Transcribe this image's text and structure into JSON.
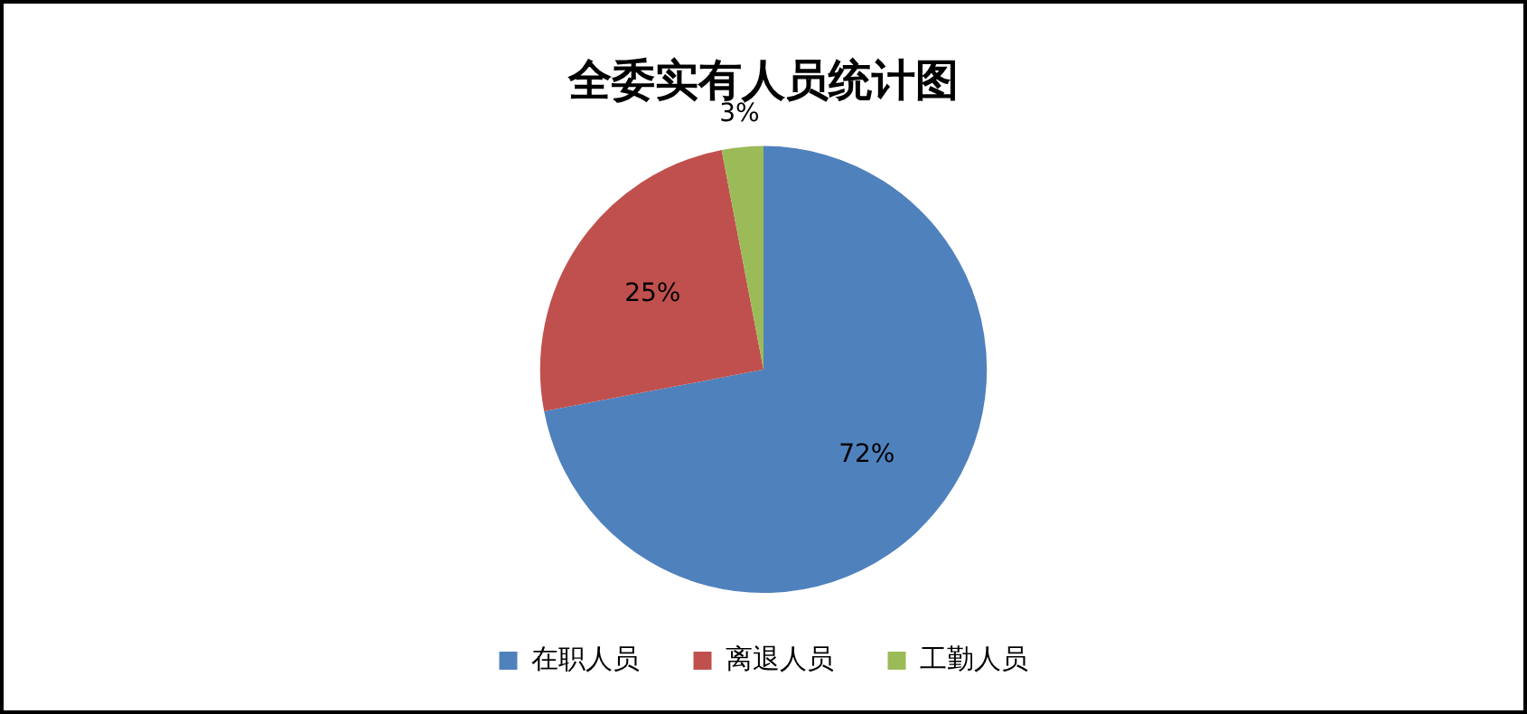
{
  "chart_data": {
    "type": "pie",
    "title": "全委实有人员统计图",
    "categories": [
      "在职人员",
      "离退人员",
      "工勤人员"
    ],
    "values": [
      72,
      25,
      3
    ],
    "colors": [
      "#4f81bd",
      "#c0504d",
      "#9bbb59"
    ],
    "value_labels": [
      "72%",
      "25%",
      "3%"
    ],
    "legend": "bottom"
  }
}
